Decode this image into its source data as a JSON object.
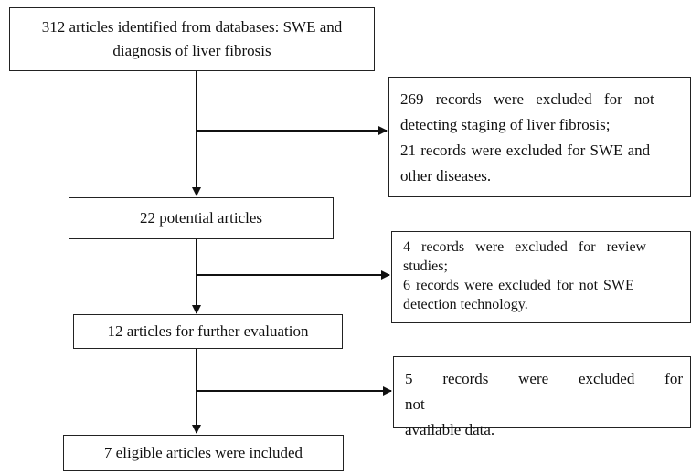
{
  "flowchart": {
    "steps": [
      {
        "lines": [
          "312 articles identified from databases: SWE and",
          "diagnosis of liver fibrosis"
        ]
      },
      {
        "lines": [
          "22 potential articles"
        ]
      },
      {
        "lines": [
          "12 articles for further evaluation"
        ]
      },
      {
        "lines": [
          "7 eligible articles were included"
        ]
      }
    ],
    "exclusions": [
      {
        "lines": [
          "269 records were excluded for not",
          "detecting staging of liver fibrosis;",
          "21 records were excluded for SWE and",
          "other diseases."
        ]
      },
      {
        "lines": [
          "4 records were excluded for review",
          "studies;",
          "6 records were excluded for not SWE",
          "detection technology."
        ]
      },
      {
        "lines": [
          "5 records were excluded for not",
          "available data."
        ]
      }
    ]
  }
}
